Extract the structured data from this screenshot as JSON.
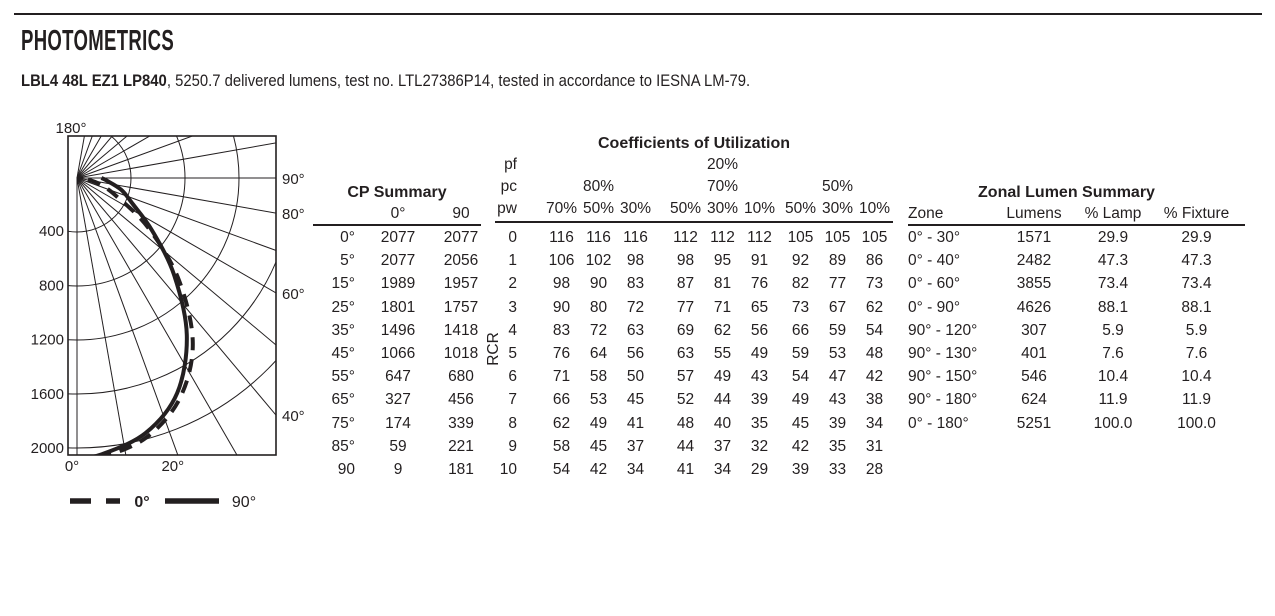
{
  "header": {
    "title": "PHOTOMETRICS",
    "product": "LBL4 48L EZ1 LP840",
    "details": ", 5250.7 delivered lumens, test no. LTL27386P14, tested in accordance to IESNA LM-79."
  },
  "chart_data": {
    "type": "line",
    "subtype": "polar-candela-distribution",
    "angle_unit": "degrees",
    "radial_unit": "candela",
    "angles": [
      0,
      5,
      15,
      25,
      35,
      45,
      55,
      65,
      75,
      85,
      90
    ],
    "series": [
      {
        "name": "0°",
        "style": "dashed",
        "values": [
          2077,
          2077,
          1989,
          1801,
          1496,
          1066,
          647,
          327,
          174,
          59,
          9
        ]
      },
      {
        "name": "90°",
        "style": "solid",
        "values": [
          2077,
          2056,
          1957,
          1757,
          1418,
          1018,
          680,
          456,
          339,
          221,
          181
        ]
      }
    ],
    "radial_ticks": [
      400,
      800,
      1200,
      1600,
      2000
    ],
    "radial_tick_labels": [
      "400",
      "800",
      "1200",
      "1600",
      "2000"
    ],
    "top_label": "180°",
    "right_labels": [
      {
        "angle": 90,
        "label": "90°"
      },
      {
        "angle": 80,
        "label": "80°"
      },
      {
        "angle": 60,
        "label": "60°"
      },
      {
        "angle": 40,
        "label": "40°"
      }
    ],
    "bottom_labels": [
      {
        "angle": 0,
        "label": "0°"
      },
      {
        "angle": 20,
        "label": "20°"
      }
    ],
    "legend": [
      {
        "label": "0°",
        "style": "dashed"
      },
      {
        "label": "90°",
        "style": "solid"
      }
    ],
    "grid": true
  },
  "cp_summary": {
    "title": "CP Summary",
    "columns": [
      "0°",
      "90"
    ],
    "rows": [
      {
        "angle": "0°",
        "v0": "2077",
        "v90": "2077"
      },
      {
        "angle": "5°",
        "v0": "2077",
        "v90": "2056"
      },
      {
        "angle": "15°",
        "v0": "1989",
        "v90": "1957"
      },
      {
        "angle": "25°",
        "v0": "1801",
        "v90": "1757"
      },
      {
        "angle": "35°",
        "v0": "1496",
        "v90": "1418"
      },
      {
        "angle": "45°",
        "v0": "1066",
        "v90": "1018"
      },
      {
        "angle": "55°",
        "v0": "647",
        "v90": "680"
      },
      {
        "angle": "65°",
        "v0": "327",
        "v90": "456"
      },
      {
        "angle": "75°",
        "v0": "174",
        "v90": "339"
      },
      {
        "angle": "85°",
        "v0": "59",
        "v90": "221"
      },
      {
        "angle": "90",
        "v0": "9",
        "v90": "181"
      }
    ]
  },
  "cou": {
    "title": "Coefficients of Utilization",
    "pf_label": "pf",
    "pf_value": "20%",
    "pc_label": "pc",
    "pc_values": [
      "80%",
      "70%",
      "50%"
    ],
    "pw_label": "pw",
    "pw_values": [
      "70%",
      "50%",
      "30%",
      "50%",
      "30%",
      "10%",
      "50%",
      "30%",
      "10%"
    ],
    "rcr_label": "RCR",
    "rows": [
      {
        "rcr": "0",
        "values": [
          "116",
          "116",
          "116",
          "112",
          "112",
          "112",
          "105",
          "105",
          "105"
        ]
      },
      {
        "rcr": "1",
        "values": [
          "106",
          "102",
          "98",
          "98",
          "95",
          "91",
          "92",
          "89",
          "86"
        ]
      },
      {
        "rcr": "2",
        "values": [
          "98",
          "90",
          "83",
          "87",
          "81",
          "76",
          "82",
          "77",
          "73"
        ]
      },
      {
        "rcr": "3",
        "values": [
          "90",
          "80",
          "72",
          "77",
          "71",
          "65",
          "73",
          "67",
          "62"
        ]
      },
      {
        "rcr": "4",
        "values": [
          "83",
          "72",
          "63",
          "69",
          "62",
          "56",
          "66",
          "59",
          "54"
        ]
      },
      {
        "rcr": "5",
        "values": [
          "76",
          "64",
          "56",
          "63",
          "55",
          "49",
          "59",
          "53",
          "48"
        ]
      },
      {
        "rcr": "6",
        "values": [
          "71",
          "58",
          "50",
          "57",
          "49",
          "43",
          "54",
          "47",
          "42"
        ]
      },
      {
        "rcr": "7",
        "values": [
          "66",
          "53",
          "45",
          "52",
          "44",
          "39",
          "49",
          "43",
          "38"
        ]
      },
      {
        "rcr": "8",
        "values": [
          "62",
          "49",
          "41",
          "48",
          "40",
          "35",
          "45",
          "39",
          "34"
        ]
      },
      {
        "rcr": "9",
        "values": [
          "58",
          "45",
          "37",
          "44",
          "37",
          "32",
          "42",
          "35",
          "31"
        ]
      },
      {
        "rcr": "10",
        "values": [
          "54",
          "42",
          "34",
          "41",
          "34",
          "29",
          "39",
          "33",
          "28"
        ]
      }
    ]
  },
  "zonal": {
    "title": "Zonal Lumen Summary",
    "columns": [
      "Zone",
      "Lumens",
      "% Lamp",
      "% Fixture"
    ],
    "rows": [
      {
        "zone": "0° - 30°",
        "lumens": "1571",
        "lamp": "29.9",
        "fixture": "29.9"
      },
      {
        "zone": "0° - 40°",
        "lumens": "2482",
        "lamp": "47.3",
        "fixture": "47.3"
      },
      {
        "zone": "0° - 60°",
        "lumens": "3855",
        "lamp": "73.4",
        "fixture": "73.4"
      },
      {
        "zone": "0° - 90°",
        "lumens": "4626",
        "lamp": "88.1",
        "fixture": "88.1"
      },
      {
        "zone": "90° - 120°",
        "lumens": "307",
        "lamp": "5.9",
        "fixture": "5.9"
      },
      {
        "zone": "90° - 130°",
        "lumens": "401",
        "lamp": "7.6",
        "fixture": "7.6"
      },
      {
        "zone": "90° - 150°",
        "lumens": "546",
        "lamp": "10.4",
        "fixture": "10.4"
      },
      {
        "zone": "90° - 180°",
        "lumens": "624",
        "lamp": "11.9",
        "fixture": "11.9"
      },
      {
        "zone": "0° - 180°",
        "lumens": "5251",
        "lamp": "100.0",
        "fixture": "100.0"
      }
    ]
  },
  "colors": {
    "ink": "#231f20",
    "background": "#ffffff"
  }
}
